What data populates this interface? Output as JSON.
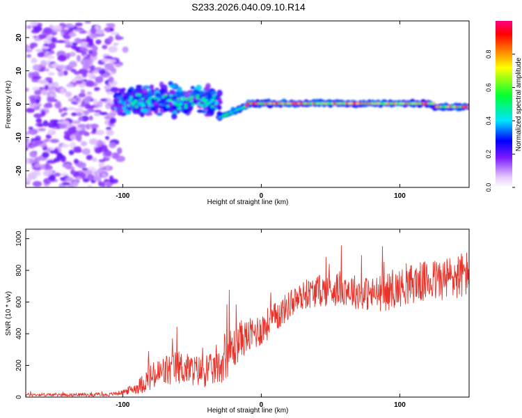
{
  "title": "S233.2026.040.09.10.R14",
  "colors": {
    "snr_line": "#e8332a",
    "axis": "#000000"
  },
  "chart_data": [
    {
      "type": "heatmap",
      "name": "spectrogram",
      "xlabel": "Height of straight line (km)",
      "ylabel": "Frequency (Hz)",
      "xlim": [
        -170,
        150
      ],
      "ylim": [
        -25,
        25
      ],
      "xticks": [
        -100,
        0,
        100
      ],
      "xtick_labels": [
        "-100",
        "0",
        "100"
      ],
      "yticks": [
        20,
        10,
        0,
        -10,
        -20
      ],
      "ytick_labels": [
        "20",
        "10",
        "0",
        "-10",
        "-20"
      ],
      "colorbar": {
        "label": "Normalized spectral amplitude",
        "range": [
          0,
          1
        ],
        "ticks": [
          0.0,
          0.2,
          0.4,
          0.6,
          0.8
        ],
        "tick_labels": [
          "0.0",
          "0.2",
          "0.4",
          "0.6",
          "0.8"
        ]
      },
      "regions": [
        {
          "x_range": [
            -170,
            -105
          ],
          "pattern": "broadband noise",
          "amplitude": [
            0.0,
            0.15
          ]
        },
        {
          "x_range": [
            -105,
            -30
          ],
          "pattern": "scattered signal near 0 Hz, spread about -10 to 10 Hz",
          "amplitude": [
            0.1,
            0.35
          ]
        },
        {
          "x_range": [
            -30,
            150
          ],
          "pattern": "narrow tonal line near 0 Hz",
          "amplitude": [
            0.5,
            1.0
          ]
        }
      ]
    },
    {
      "type": "line",
      "name": "snr",
      "xlabel": "Height of straight line (km)",
      "ylabel": "SNR (10 * v/v)",
      "xlim": [
        -170,
        150
      ],
      "ylim": [
        0,
        1060
      ],
      "xticks": [
        -100,
        0,
        100
      ],
      "xtick_labels": [
        "-100",
        "0",
        "100"
      ],
      "yticks": [
        0,
        200,
        400,
        600,
        800,
        1000
      ],
      "ytick_labels": [
        "0",
        "200",
        "400",
        "600",
        "800",
        "1000"
      ],
      "series": [
        {
          "name": "SNR",
          "x": [
            -170,
            -150,
            -130,
            -110,
            -100,
            -90,
            -80,
            -70,
            -60,
            -50,
            -40,
            -30,
            -25,
            -20,
            -15,
            -10,
            0,
            10,
            20,
            30,
            40,
            50,
            60,
            70,
            80,
            90,
            100,
            110,
            120,
            130,
            140,
            150
          ],
          "values": [
            15,
            15,
            15,
            15,
            30,
            60,
            120,
            160,
            190,
            170,
            160,
            190,
            280,
            300,
            370,
            380,
            430,
            500,
            580,
            640,
            670,
            680,
            690,
            660,
            650,
            660,
            690,
            720,
            730,
            740,
            760,
            780
          ],
          "noise_amplitude": [
            10,
            10,
            10,
            10,
            15,
            40,
            90,
            110,
            110,
            100,
            100,
            110,
            160,
            140,
            120,
            110,
            110,
            100,
            90,
            90,
            100,
            110,
            110,
            110,
            110,
            120,
            120,
            130,
            130,
            140,
            150,
            150
          ]
        }
      ]
    }
  ]
}
